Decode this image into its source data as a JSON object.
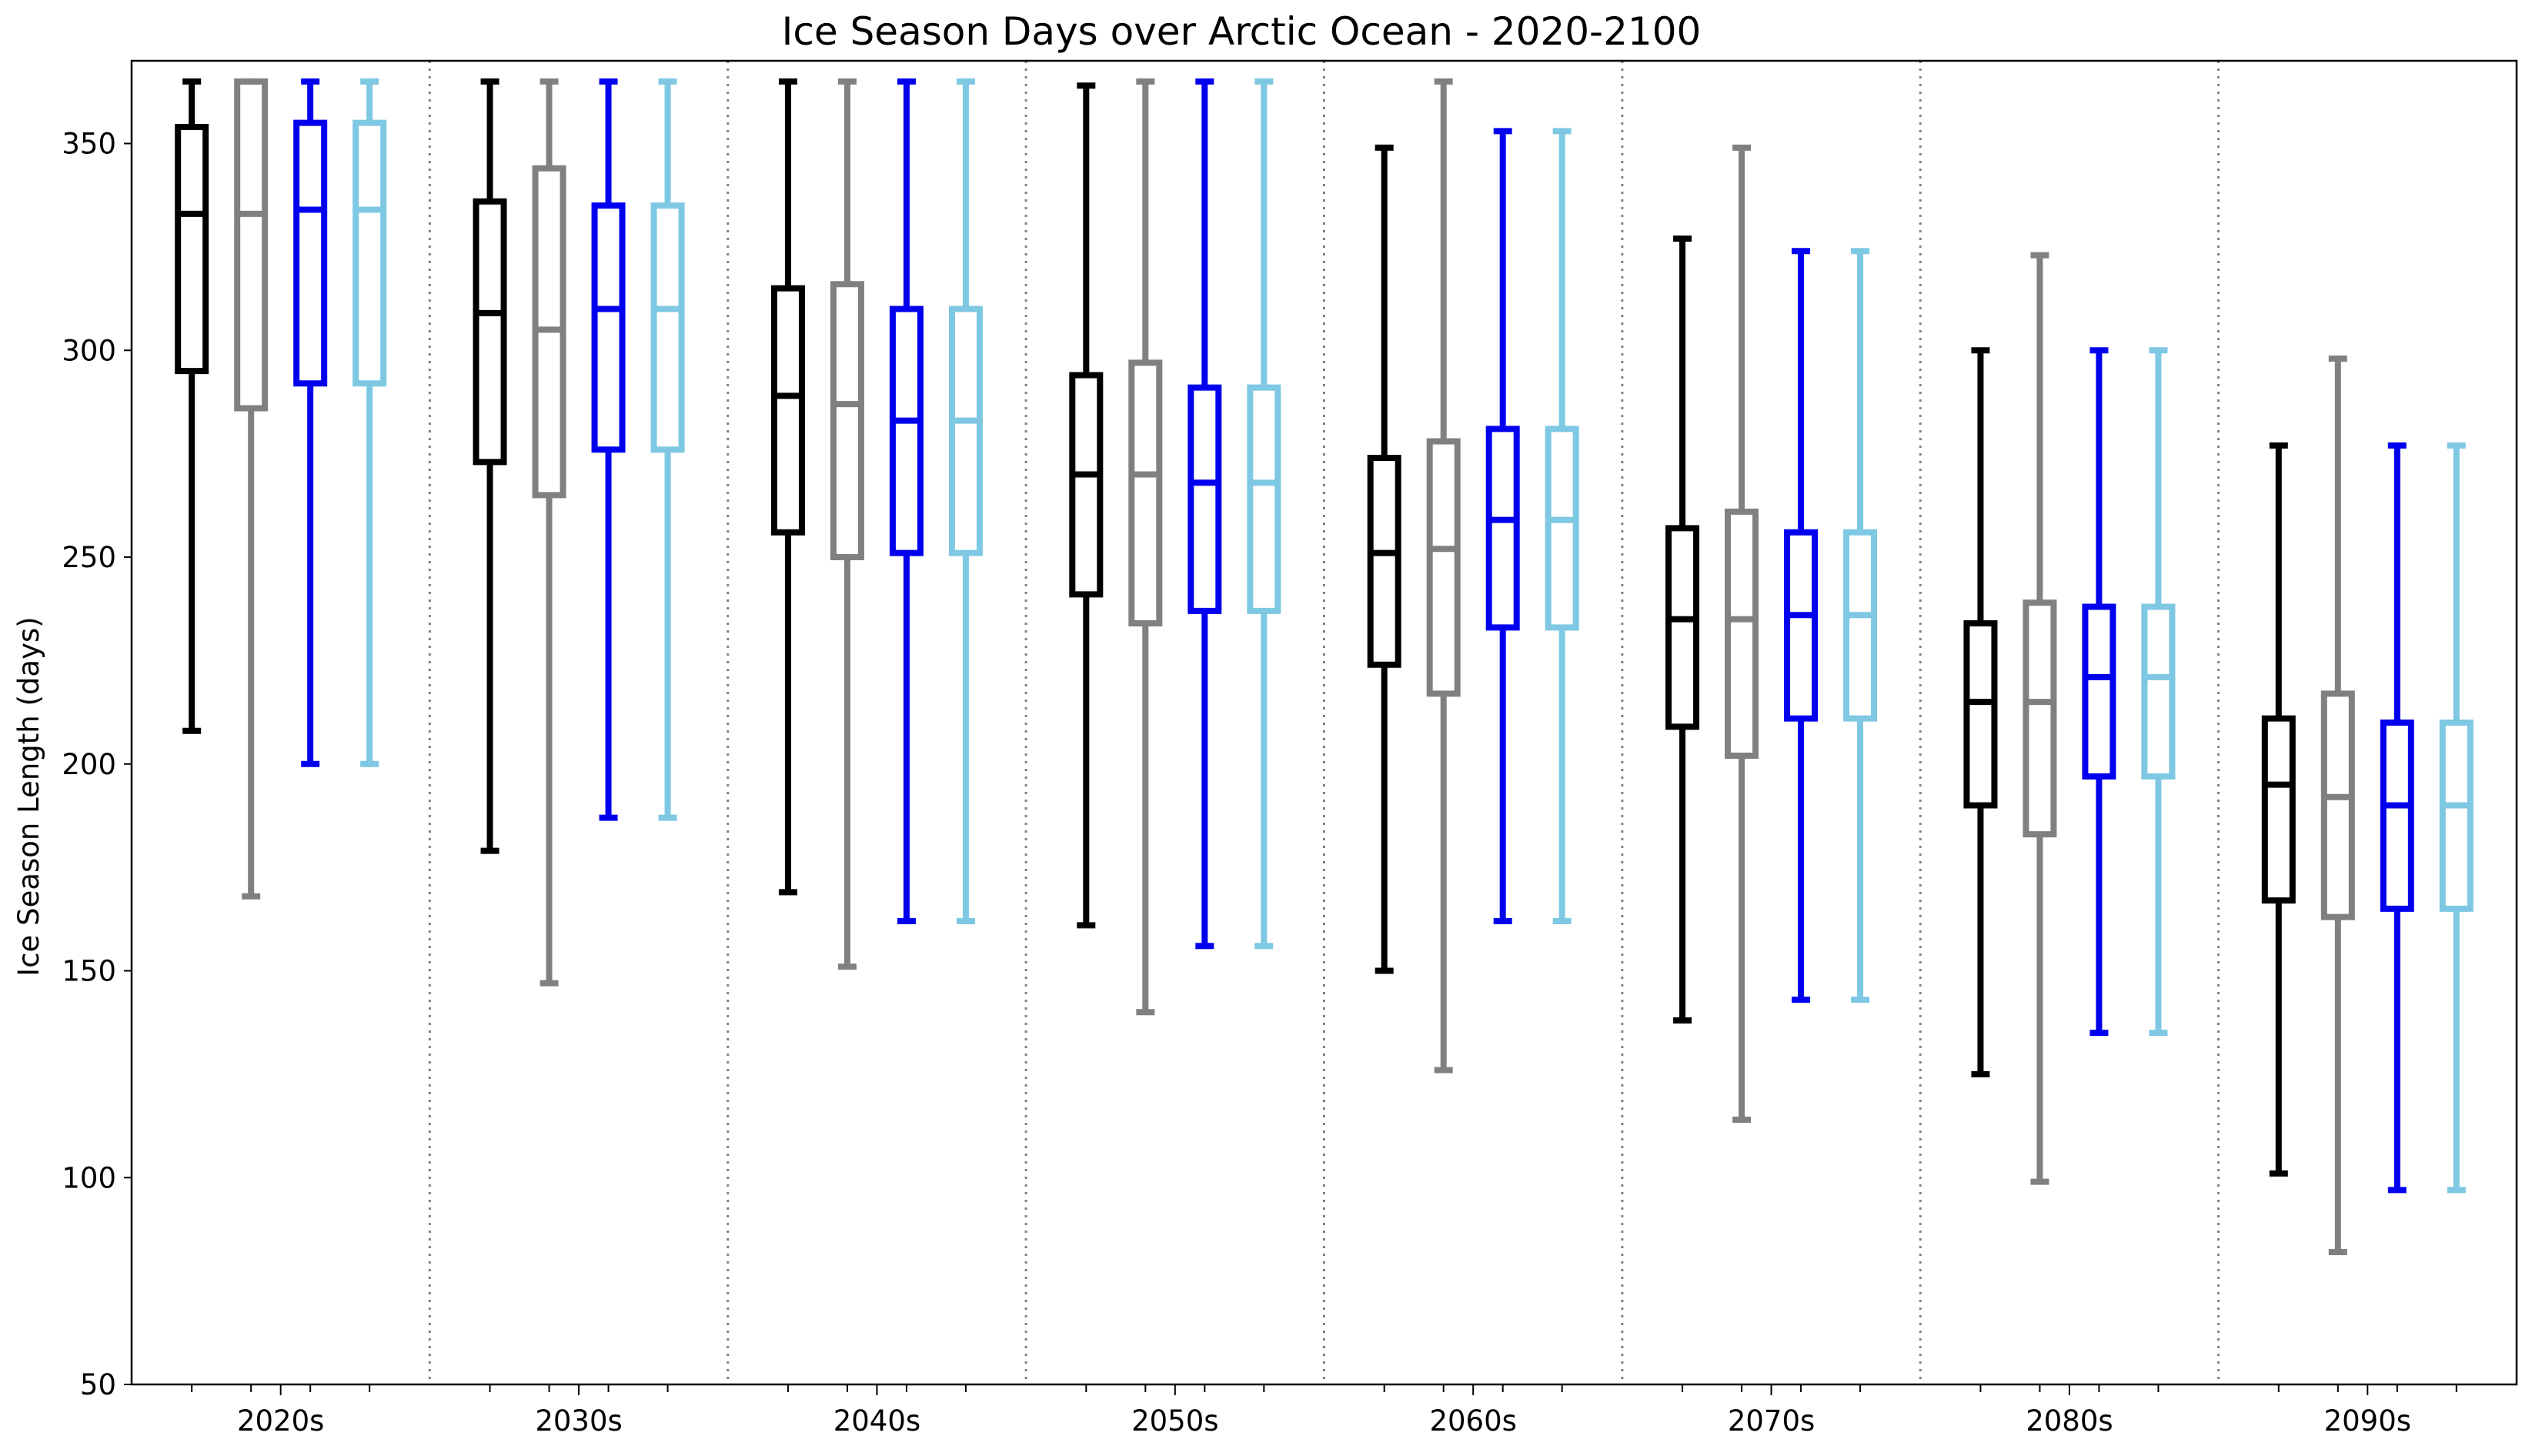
{
  "chart_data": {
    "type": "box",
    "title": "Ice Season Days over Arctic Ocean - 2020-2100",
    "xlabel": "",
    "ylabel": "Ice Season Length (days)",
    "ylim": [
      50,
      370
    ],
    "yticks": [
      50,
      100,
      150,
      200,
      250,
      300,
      350
    ],
    "categories": [
      "2020s",
      "2030s",
      "2040s",
      "2050s",
      "2060s",
      "2070s",
      "2080s",
      "2090s"
    ],
    "colors": [
      "#000000",
      "#808080",
      "#0000ee",
      "#7ec8e3"
    ],
    "separators": "dotted",
    "grid": false,
    "legend": null,
    "groups": [
      [
        {
          "whislo": 208,
          "q1": 295,
          "med": 333,
          "q3": 354,
          "whishi": 365
        },
        {
          "whislo": 168,
          "q1": 286,
          "med": 333,
          "q3": 365,
          "whishi": 365
        },
        {
          "whislo": 200,
          "q1": 292,
          "med": 334,
          "q3": 355,
          "whishi": 365
        },
        {
          "whislo": 200,
          "q1": 292,
          "med": 334,
          "q3": 355,
          "whishi": 365
        }
      ],
      [
        {
          "whislo": 179,
          "q1": 273,
          "med": 309,
          "q3": 336,
          "whishi": 365
        },
        {
          "whislo": 147,
          "q1": 265,
          "med": 305,
          "q3": 344,
          "whishi": 365
        },
        {
          "whislo": 187,
          "q1": 276,
          "med": 310,
          "q3": 335,
          "whishi": 365
        },
        {
          "whislo": 187,
          "q1": 276,
          "med": 310,
          "q3": 335,
          "whishi": 365
        }
      ],
      [
        {
          "whislo": 169,
          "q1": 256,
          "med": 289,
          "q3": 315,
          "whishi": 365
        },
        {
          "whislo": 151,
          "q1": 250,
          "med": 287,
          "q3": 316,
          "whishi": 365
        },
        {
          "whislo": 162,
          "q1": 251,
          "med": 283,
          "q3": 310,
          "whishi": 365
        },
        {
          "whislo": 162,
          "q1": 251,
          "med": 283,
          "q3": 310,
          "whishi": 365
        }
      ],
      [
        {
          "whislo": 161,
          "q1": 241,
          "med": 270,
          "q3": 294,
          "whishi": 364
        },
        {
          "whislo": 140,
          "q1": 234,
          "med": 270,
          "q3": 297,
          "whishi": 365
        },
        {
          "whislo": 156,
          "q1": 237,
          "med": 268,
          "q3": 291,
          "whishi": 365
        },
        {
          "whislo": 156,
          "q1": 237,
          "med": 268,
          "q3": 291,
          "whishi": 365
        }
      ],
      [
        {
          "whislo": 150,
          "q1": 224,
          "med": 251,
          "q3": 274,
          "whishi": 349
        },
        {
          "whislo": 126,
          "q1": 217,
          "med": 252,
          "q3": 278,
          "whishi": 365
        },
        {
          "whislo": 162,
          "q1": 233,
          "med": 259,
          "q3": 281,
          "whishi": 353
        },
        {
          "whislo": 162,
          "q1": 233,
          "med": 259,
          "q3": 281,
          "whishi": 353
        }
      ],
      [
        {
          "whislo": 138,
          "q1": 209,
          "med": 235,
          "q3": 257,
          "whishi": 327
        },
        {
          "whislo": 114,
          "q1": 202,
          "med": 235,
          "q3": 261,
          "whishi": 349
        },
        {
          "whislo": 143,
          "q1": 211,
          "med": 236,
          "q3": 256,
          "whishi": 324
        },
        {
          "whislo": 143,
          "q1": 211,
          "med": 236,
          "q3": 256,
          "whishi": 324
        }
      ],
      [
        {
          "whislo": 125,
          "q1": 190,
          "med": 215,
          "q3": 234,
          "whishi": 300
        },
        {
          "whislo": 99,
          "q1": 183,
          "med": 215,
          "q3": 239,
          "whishi": 323
        },
        {
          "whislo": 135,
          "q1": 197,
          "med": 221,
          "q3": 238,
          "whishi": 300
        },
        {
          "whislo": 135,
          "q1": 197,
          "med": 221,
          "q3": 238,
          "whishi": 300
        }
      ],
      [
        {
          "whislo": 101,
          "q1": 167,
          "med": 195,
          "q3": 211,
          "whishi": 277
        },
        {
          "whislo": 82,
          "q1": 163,
          "med": 192,
          "q3": 217,
          "whishi": 298
        },
        {
          "whislo": 97,
          "q1": 165,
          "med": 190,
          "q3": 210,
          "whishi": 277
        },
        {
          "whislo": 97,
          "q1": 165,
          "med": 190,
          "q3": 210,
          "whishi": 277
        }
      ]
    ]
  }
}
